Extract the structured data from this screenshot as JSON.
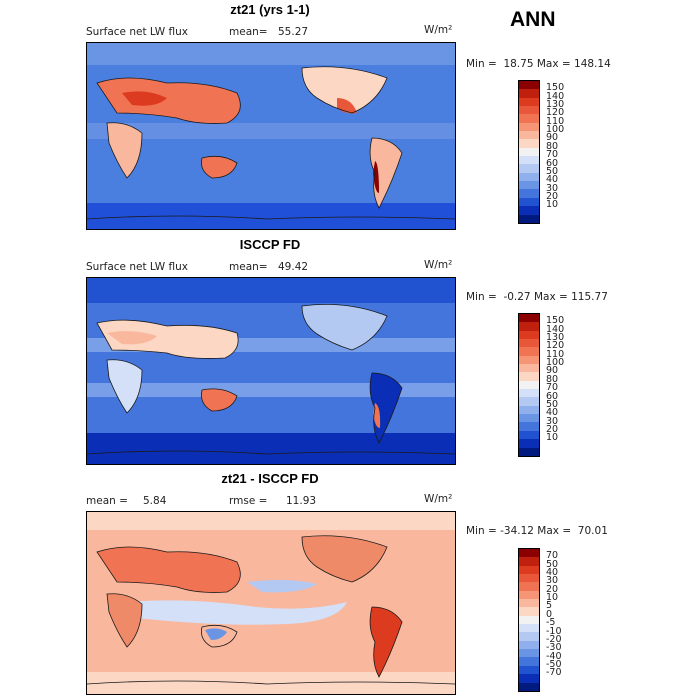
{
  "season": "ANN",
  "units": "W/m²",
  "panels": [
    {
      "title": "zt21 (yrs 1-1)",
      "field": "Surface net LW flux",
      "stat_label": "mean=",
      "stat_value": "55.27",
      "min_max": "Min =  18.75 Max = 148.14",
      "colorbar": {
        "ticks": [
          "150",
          "140",
          "130",
          "120",
          "110",
          "100",
          "90",
          "80",
          "70",
          "60",
          "50",
          "40",
          "30",
          "20",
          "10"
        ],
        "colors": [
          "#8b0000",
          "#c0210f",
          "#dc3b1f",
          "#e9573a",
          "#f07454",
          "#f59575",
          "#f9b79d",
          "#fcd7c3",
          "#f2f2f2",
          "#d4e0f7",
          "#b3c9f2",
          "#8fb0ec",
          "#6a94e4",
          "#4475dc",
          "#2153d0",
          "#0a2eb5",
          "#001a80"
        ]
      }
    },
    {
      "title": "ISCCP FD",
      "field": "Surface net LW flux",
      "stat_label": "mean=",
      "stat_value": "49.42",
      "min_max": "Min =  -0.27 Max = 115.77",
      "colorbar": {
        "ticks": [
          "150",
          "140",
          "130",
          "120",
          "110",
          "100",
          "90",
          "80",
          "70",
          "60",
          "50",
          "40",
          "30",
          "20",
          "10"
        ],
        "colors": [
          "#8b0000",
          "#c0210f",
          "#dc3b1f",
          "#e9573a",
          "#f07454",
          "#f59575",
          "#f9b79d",
          "#fcd7c3",
          "#f2f2f2",
          "#d4e0f7",
          "#b3c9f2",
          "#8fb0ec",
          "#6a94e4",
          "#4475dc",
          "#2153d0",
          "#0a2eb5",
          "#001a80"
        ]
      }
    },
    {
      "title": "zt21 - ISCCP FD",
      "stat_label": "mean =",
      "stat_value": "5.84",
      "rmse_label": "rmse =",
      "rmse_value": "11.93",
      "min_max": "Min = -34.12 Max =  70.01",
      "colorbar": {
        "ticks": [
          "70",
          "50",
          "40",
          "30",
          "20",
          "10",
          "5",
          "0",
          "-5",
          "-10",
          "-20",
          "-30",
          "-40",
          "-50",
          "-70"
        ],
        "colors": [
          "#8b0000",
          "#c0210f",
          "#dc3b1f",
          "#e9573a",
          "#f07454",
          "#f59575",
          "#f9b79d",
          "#fcd7c3",
          "#f2f2f2",
          "#d4e0f7",
          "#b3c9f2",
          "#8fb0ec",
          "#6a94e4",
          "#4475dc",
          "#2153d0",
          "#0a2eb5",
          "#001a80"
        ]
      }
    }
  ],
  "palette": {
    "land_warm": "#f0785a",
    "land_hot": "#d83a22",
    "ocean": "#4a7fe0",
    "ocean_deep": "#2050d8",
    "ocean_light": "#9cbcf0",
    "diff_base": "#f8c8b0",
    "diff_warm": "#ef8a68",
    "diff_cool": "#c4d6f5",
    "coast": "#1a1a1a"
  }
}
